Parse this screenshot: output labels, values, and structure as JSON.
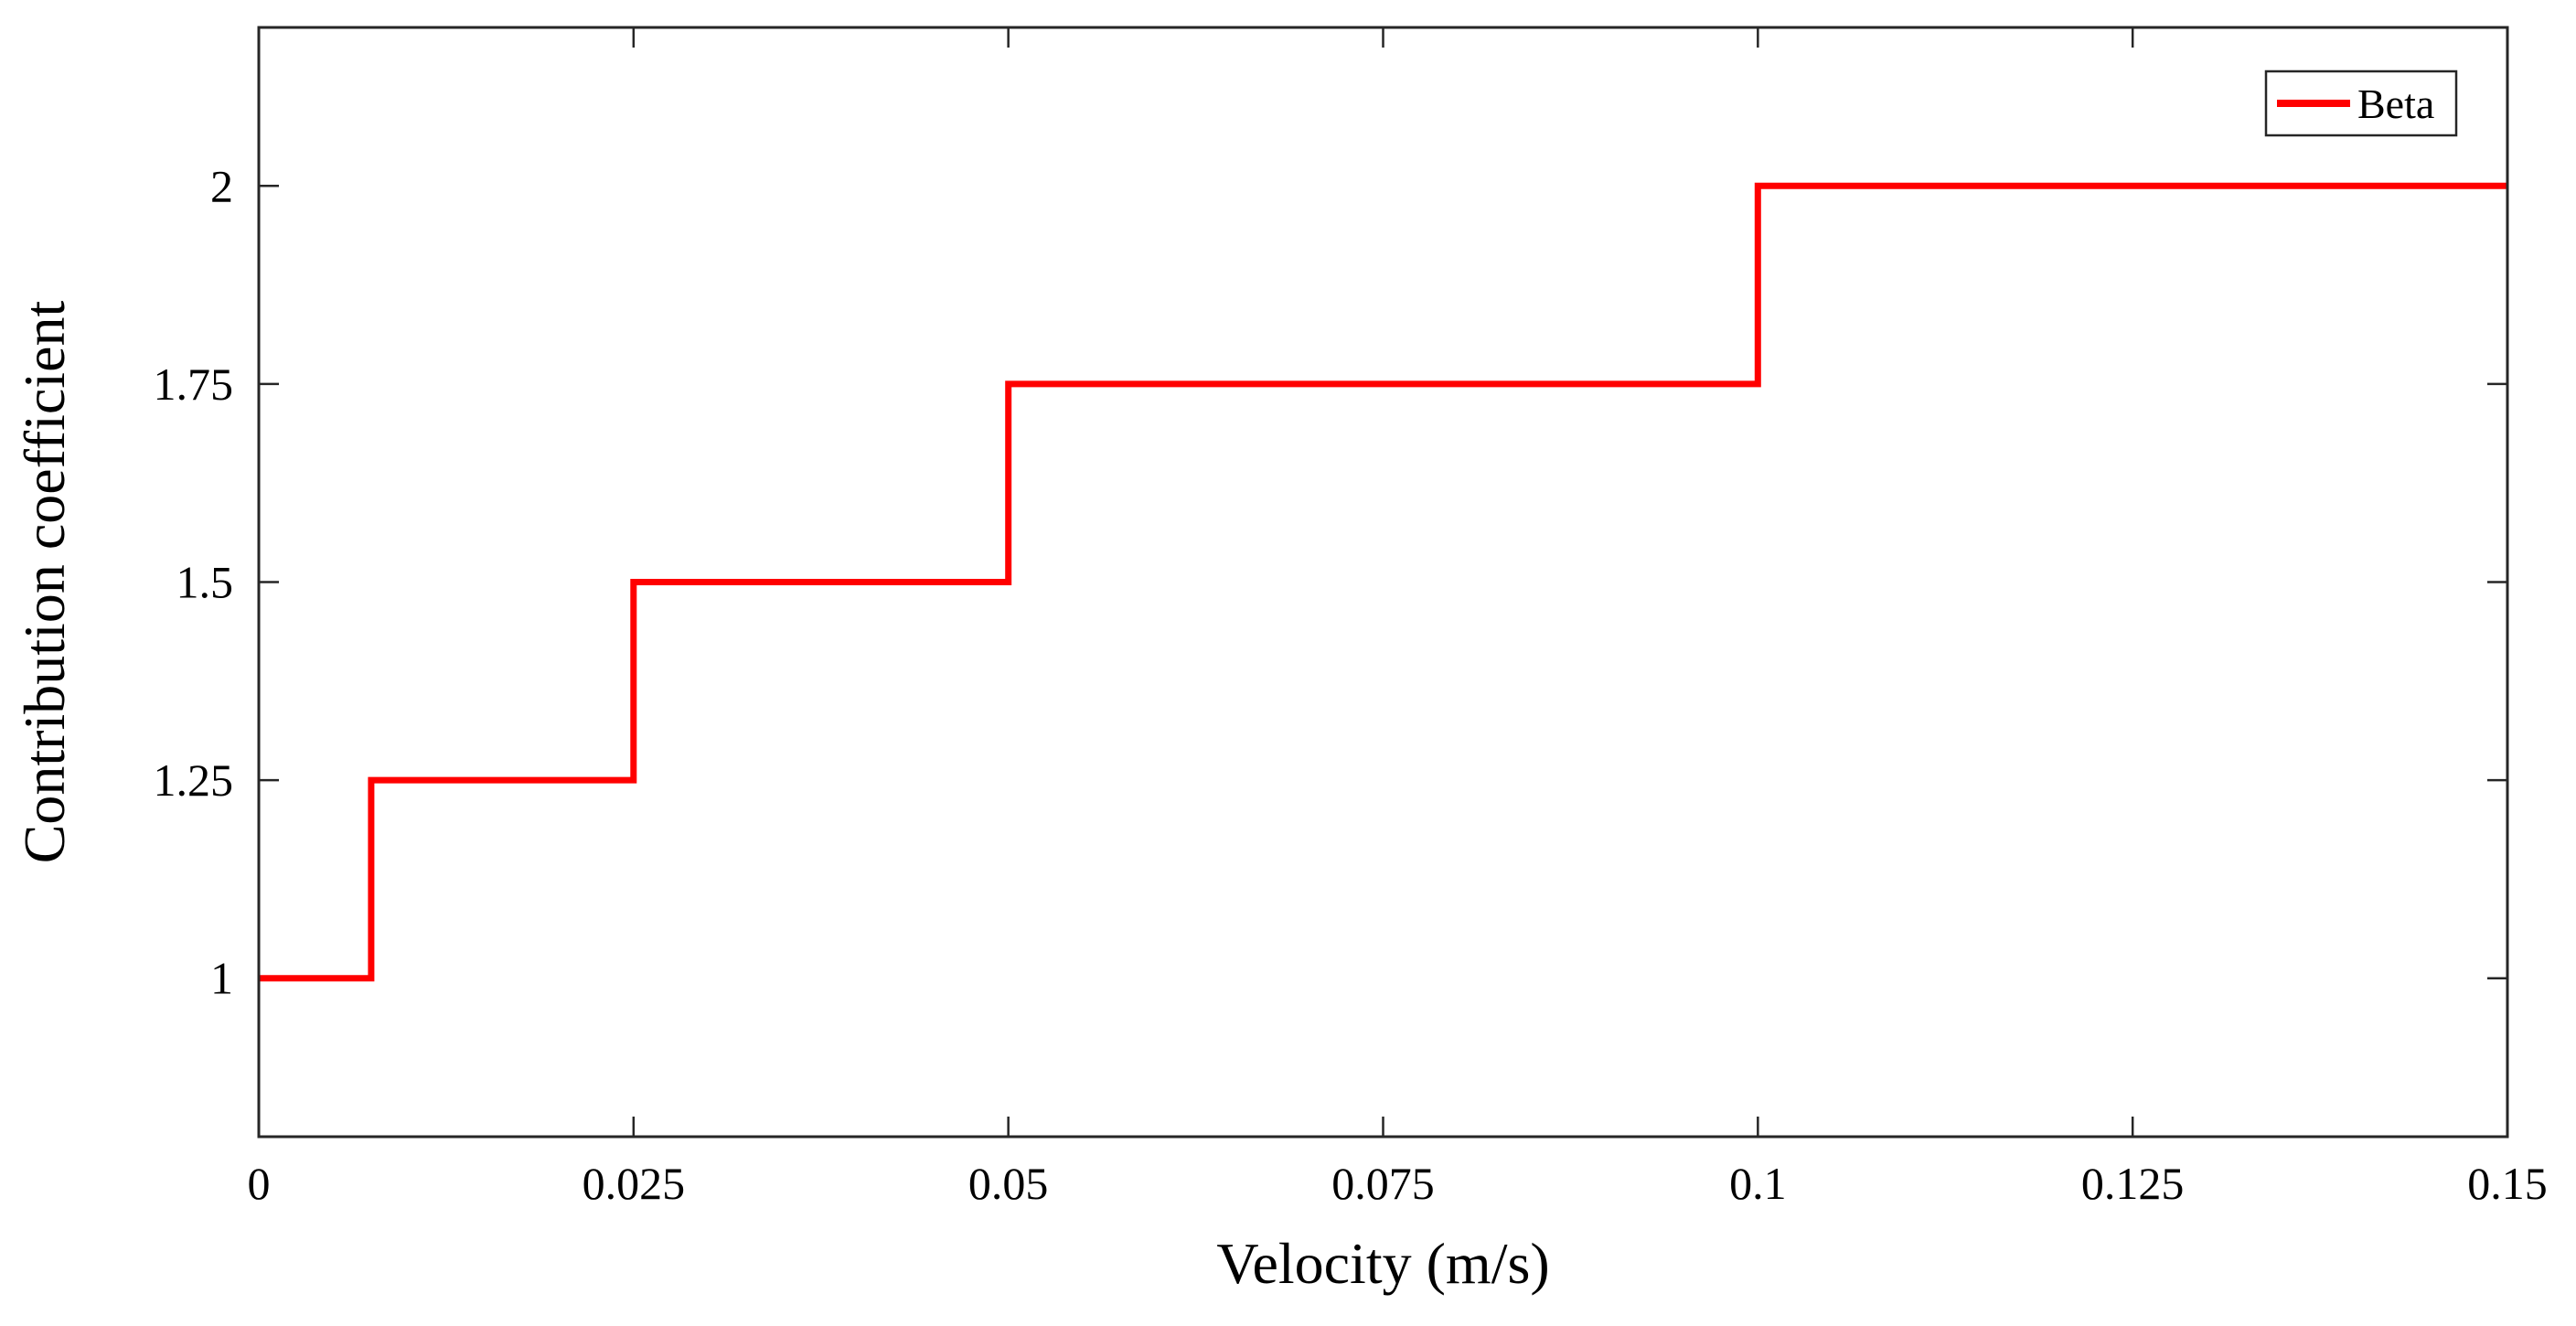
{
  "chart_data": {
    "type": "line",
    "title": "",
    "xlabel": "Velocity (m/s)",
    "ylabel": "Contribution coefficient",
    "xlim": [
      0,
      0.15
    ],
    "ylim": [
      0.8,
      2.2
    ],
    "x_ticks": [
      0,
      0.025,
      0.05,
      0.075,
      0.1,
      0.125,
      0.15
    ],
    "x_tick_labels": [
      "0",
      "0.025",
      "0.05",
      "0.075",
      "0.1",
      "0.125",
      "0.15"
    ],
    "y_ticks": [
      1,
      1.25,
      1.5,
      1.75,
      2
    ],
    "y_tick_labels": [
      "1",
      "1.25",
      "1.5",
      "1.75",
      "2"
    ],
    "grid": false,
    "legend_position": "top-right",
    "series": [
      {
        "name": "Beta",
        "color": "#ff0000",
        "step": true,
        "x": [
          0,
          0.0075,
          0.0075,
          0.025,
          0.025,
          0.05,
          0.05,
          0.1,
          0.1,
          0.15
        ],
        "y": [
          1,
          1,
          1.25,
          1.25,
          1.5,
          1.5,
          1.75,
          1.75,
          2,
          2
        ]
      }
    ]
  }
}
